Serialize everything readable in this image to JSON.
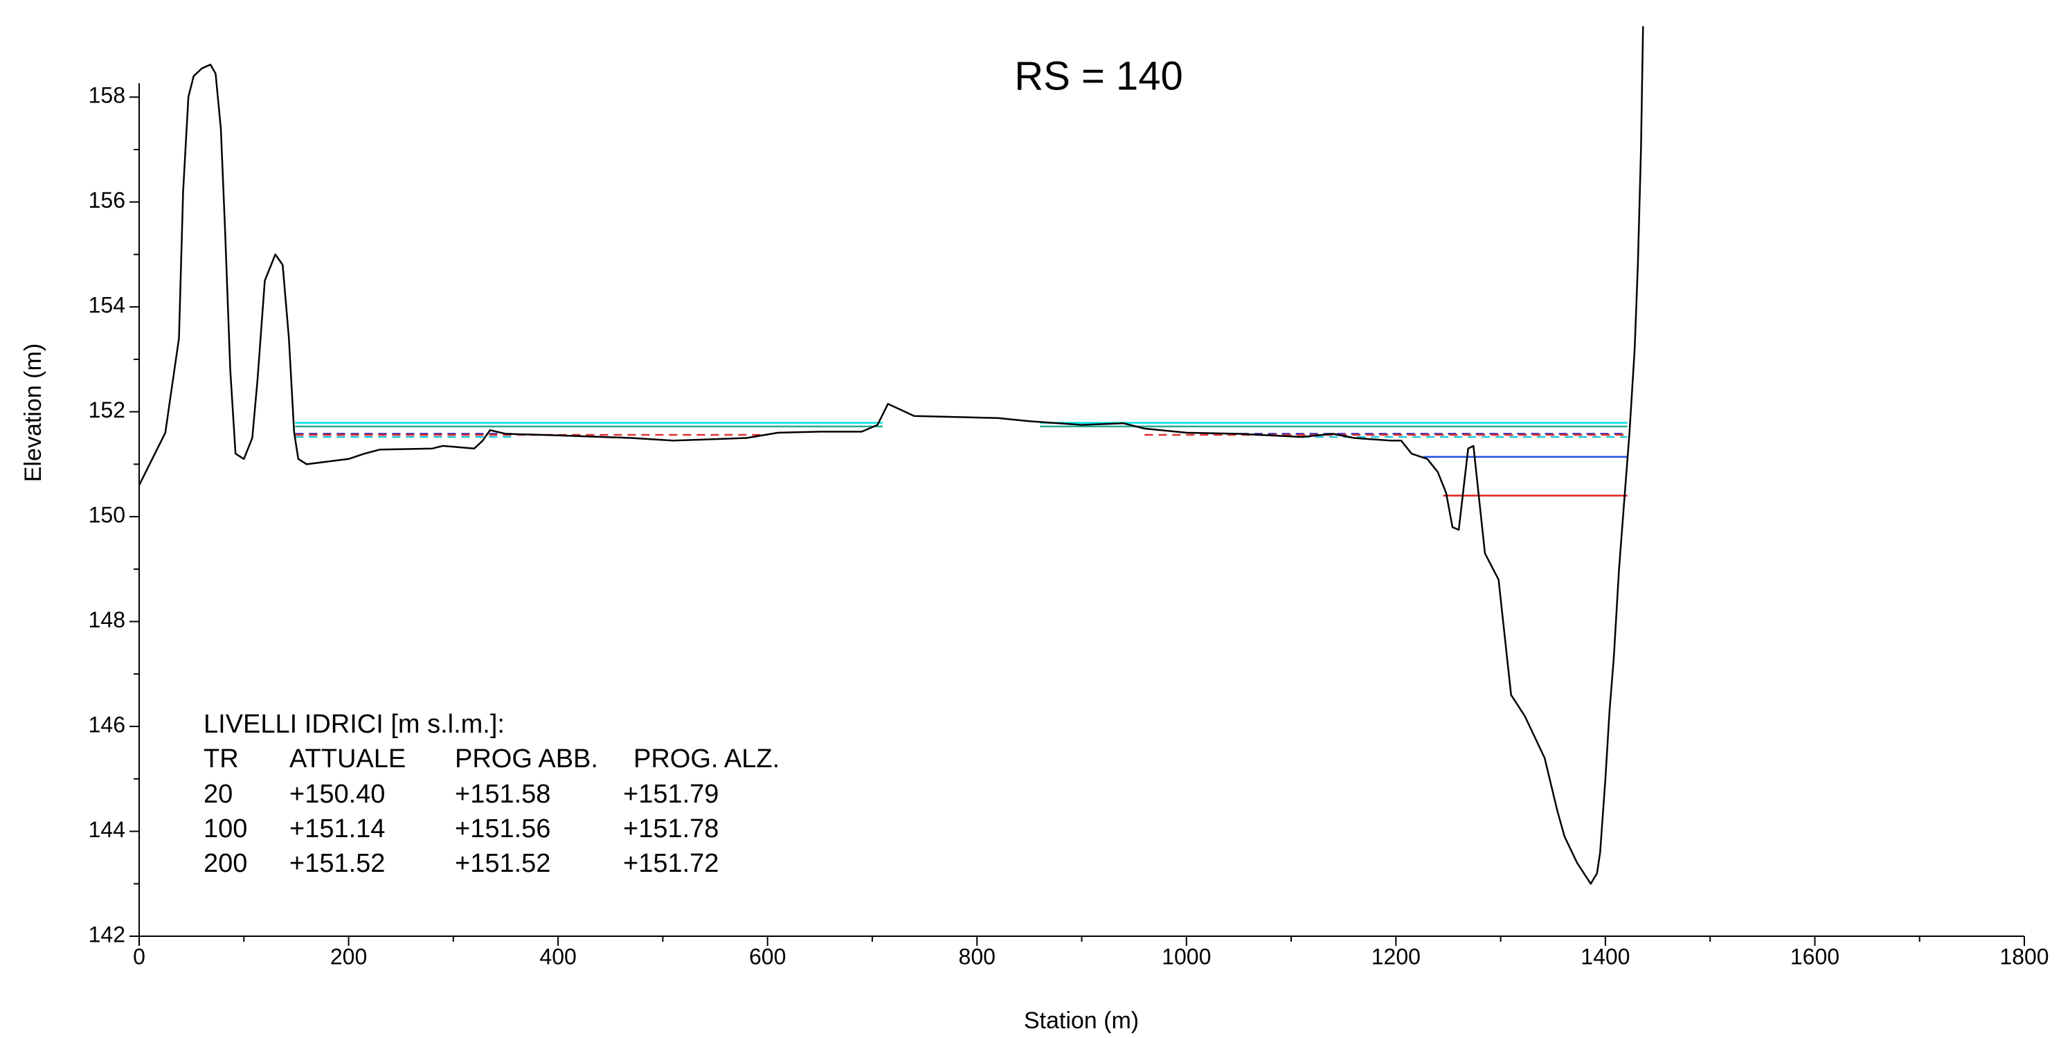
{
  "chart_data": {
    "type": "line",
    "title": "RS = 140",
    "x_label": "Station (m)",
    "y_label": "Elevation (m)",
    "xlim": [
      0,
      1800
    ],
    "ylim": [
      142,
      159.35
    ],
    "xticks": [
      0,
      200,
      400,
      600,
      800,
      1000,
      1200,
      1400,
      1600,
      1800
    ],
    "yticks": [
      142,
      144,
      146,
      148,
      150,
      152,
      154,
      156,
      158
    ],
    "xminorticks": [
      100,
      300,
      500,
      700,
      900,
      1100,
      1300,
      1500,
      1700
    ],
    "yminorticks": [
      143,
      145,
      147,
      149,
      151,
      153,
      155,
      157
    ],
    "ground": {
      "color": "#000000",
      "x": [
        0,
        15,
        25,
        30,
        38,
        42,
        47,
        52,
        60,
        68,
        73,
        78,
        82,
        87,
        92,
        100,
        108,
        113,
        120,
        130,
        137,
        143,
        148,
        152,
        160,
        200,
        215,
        230,
        280,
        290,
        320,
        328,
        335,
        350,
        400,
        470,
        510,
        580,
        610,
        650,
        690,
        705,
        715,
        740,
        820,
        850,
        900,
        940,
        960,
        1000,
        1050,
        1110,
        1140,
        1160,
        1195,
        1205,
        1215,
        1230,
        1240,
        1248,
        1254,
        1260,
        1269,
        1274,
        1285,
        1298,
        1310,
        1323,
        1342,
        1354,
        1361,
        1373,
        1386,
        1392,
        1395,
        1400,
        1404,
        1408,
        1413,
        1418,
        1423,
        1428,
        1431,
        1434,
        1436
      ],
      "values": [
        150.6,
        151.2,
        151.6,
        152.3,
        153.4,
        156.2,
        158.0,
        158.4,
        158.55,
        158.62,
        158.45,
        157.4,
        155.5,
        152.8,
        151.2,
        151.1,
        151.5,
        152.6,
        154.5,
        155.0,
        154.8,
        153.4,
        151.6,
        151.1,
        151.0,
        151.1,
        151.2,
        151.28,
        151.3,
        151.35,
        151.3,
        151.45,
        151.65,
        151.58,
        151.55,
        151.5,
        151.45,
        151.5,
        151.6,
        151.62,
        151.62,
        151.75,
        152.15,
        151.92,
        151.88,
        151.82,
        151.75,
        151.78,
        151.68,
        151.6,
        151.58,
        151.52,
        151.58,
        151.5,
        151.45,
        151.45,
        151.2,
        151.1,
        150.85,
        150.45,
        149.8,
        149.75,
        151.3,
        151.35,
        149.3,
        148.8,
        146.6,
        146.2,
        145.4,
        144.4,
        143.9,
        143.4,
        143.0,
        143.2,
        143.6,
        145.0,
        146.3,
        147.3,
        149.0,
        150.3,
        151.6,
        153.2,
        154.8,
        157.0,
        159.35
      ]
    },
    "series": [
      {
        "color": "#00e0e0",
        "dash": false,
        "x": [
          149,
          710,
          710,
          860,
          1421
        ],
        "values": [
          151.79,
          151.79,
          null,
          151.79,
          151.79
        ]
      },
      {
        "color": "#2aa898",
        "dash": false,
        "x": [
          149,
          710,
          710,
          860,
          1421
        ],
        "values": [
          151.72,
          151.72,
          null,
          151.72,
          151.72
        ]
      },
      {
        "color": "#2020c0",
        "dash": true,
        "x": [
          149,
          360,
          360,
          1025,
          1421
        ],
        "values": [
          151.58,
          151.58,
          null,
          151.58,
          151.58
        ]
      },
      {
        "color": "#e03030",
        "dash": true,
        "x": [
          149,
          600,
          600,
          960,
          1421
        ],
        "values": [
          151.56,
          151.56,
          null,
          151.56,
          151.56
        ]
      },
      {
        "color": "#20c8d8",
        "dash": true,
        "x": [
          149,
          360,
          360,
          1110,
          1421
        ],
        "values": [
          151.52,
          151.52,
          null,
          151.52,
          151.52
        ]
      },
      {
        "color": "#2050e0",
        "dash": false,
        "x": [
          1226,
          1421
        ],
        "values": [
          151.14,
          151.14
        ]
      },
      {
        "color": "#e02020",
        "dash": false,
        "x": [
          1245,
          1421
        ],
        "values": [
          150.4,
          150.4
        ]
      }
    ],
    "table": {
      "title": "LIVELLI IDRICI [m s.l.m.]:",
      "columns": [
        "TR",
        "ATTUALE",
        "PROG ABB.",
        "PROG. ALZ."
      ],
      "rows": [
        [
          "20",
          "+150.40",
          "+151.58",
          "+151.79"
        ],
        [
          "100",
          "+151.14",
          "+151.56",
          "+151.78"
        ],
        [
          "200",
          "+151.52",
          "+151.52",
          "+151.72"
        ]
      ]
    }
  }
}
